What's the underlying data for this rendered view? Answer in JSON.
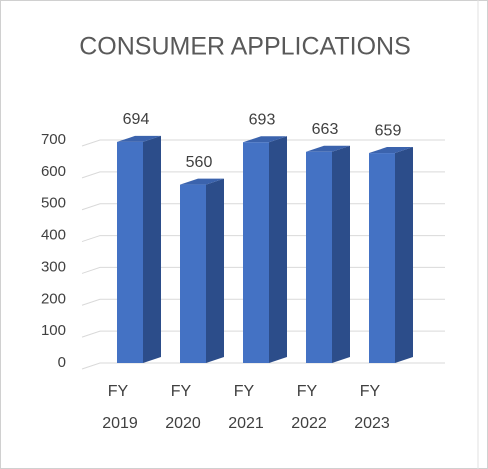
{
  "chart_data": {
    "type": "bar",
    "title": "CONSUMER APPLICATIONS",
    "categories": [
      "FY 2019",
      "FY 2020",
      "FY 2021",
      "FY 2022",
      "FY 2023"
    ],
    "values": [
      694,
      560,
      693,
      663,
      659
    ],
    "color": "#4472c4",
    "ylim": [
      0,
      700
    ],
    "yticks": [
      0,
      100,
      200,
      300,
      400,
      500,
      600,
      700
    ],
    "grid": true
  }
}
